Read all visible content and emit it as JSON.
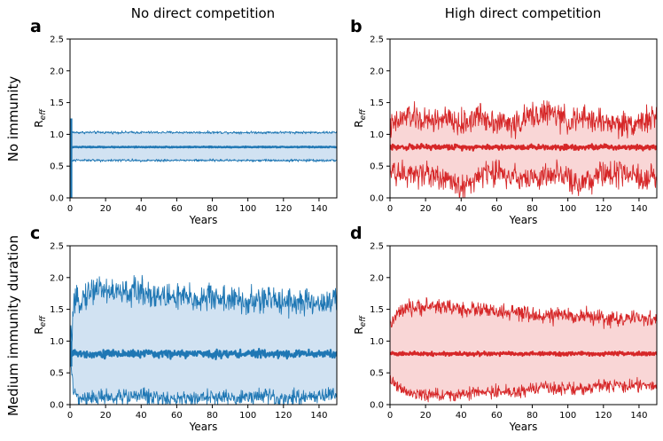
{
  "column_titles": [
    "No direct competition",
    "High direct competition"
  ],
  "row_titles": [
    "No immunity",
    "Medium immunity duration"
  ],
  "chart_data": [
    {
      "panel": "a",
      "type": "line",
      "color": "#1f77b4",
      "fill": "#c6dbef",
      "xlabel": "Years",
      "ylabel_main": "R",
      "ylabel_sub": "eff",
      "xlim": [
        0,
        150
      ],
      "ylim": [
        0,
        2.5
      ],
      "xticks": [
        0,
        20,
        40,
        60,
        80,
        100,
        120,
        140
      ],
      "yticks": [
        0.0,
        0.5,
        1.0,
        1.5,
        2.0,
        2.5
      ],
      "series": [
        {
          "name": "upper",
          "x": [
            0,
            150
          ],
          "y": [
            1.03,
            1.03
          ],
          "noise": 0.01
        },
        {
          "name": "mean",
          "x": [
            0,
            150
          ],
          "y": [
            0.8,
            0.8
          ],
          "noise": 0.004
        },
        {
          "name": "lower",
          "x": [
            0,
            150
          ],
          "y": [
            0.59,
            0.59
          ],
          "noise": 0.01
        }
      ],
      "initial_spike": [
        0.0,
        1.25
      ]
    },
    {
      "panel": "b",
      "type": "line",
      "color": "#d62728",
      "fill": "#f7cccc",
      "xlabel": "Years",
      "ylabel_main": "R",
      "ylabel_sub": "eff",
      "xlim": [
        0,
        150
      ],
      "ylim": [
        0,
        2.5
      ],
      "xticks": [
        0,
        20,
        40,
        60,
        80,
        100,
        120,
        140
      ],
      "yticks": [
        0.0,
        0.5,
        1.0,
        1.5,
        2.0,
        2.5
      ],
      "series": [
        {
          "name": "upper",
          "x": [
            0,
            10,
            20,
            30,
            40,
            50,
            60,
            70,
            80,
            90,
            100,
            110,
            120,
            130,
            140,
            150
          ],
          "y": [
            1.1,
            1.3,
            1.2,
            1.25,
            1.15,
            1.3,
            1.2,
            1.15,
            1.3,
            1.35,
            1.2,
            1.25,
            1.2,
            1.15,
            1.2,
            1.25
          ],
          "noise": 0.1
        },
        {
          "name": "mean",
          "x": [
            0,
            150
          ],
          "y": [
            0.8,
            0.8
          ],
          "noise": 0.02
        },
        {
          "name": "lower",
          "x": [
            0,
            10,
            20,
            30,
            40,
            50,
            60,
            70,
            80,
            90,
            100,
            110,
            120,
            130,
            140,
            150
          ],
          "y": [
            0.45,
            0.35,
            0.4,
            0.3,
            0.15,
            0.35,
            0.4,
            0.35,
            0.3,
            0.35,
            0.3,
            0.2,
            0.4,
            0.35,
            0.3,
            0.3
          ],
          "noise": 0.1
        }
      ],
      "initial_spike": []
    },
    {
      "panel": "c",
      "type": "line",
      "color": "#1f77b4",
      "fill": "#c6dbef",
      "xlabel": "Years",
      "ylabel_main": "R",
      "ylabel_sub": "eff",
      "xlim": [
        0,
        150
      ],
      "ylim": [
        0,
        2.5
      ],
      "xticks": [
        0,
        20,
        40,
        60,
        80,
        100,
        120,
        140
      ],
      "yticks": [
        0.0,
        0.5,
        1.0,
        1.5,
        2.0,
        2.5
      ],
      "series": [
        {
          "name": "upper",
          "x": [
            0,
            2,
            5,
            10,
            15,
            20,
            30,
            40,
            50,
            60,
            70,
            80,
            90,
            100,
            110,
            120,
            130,
            140,
            150
          ],
          "y": [
            0.8,
            1.5,
            1.65,
            1.75,
            1.85,
            1.8,
            1.75,
            1.8,
            1.7,
            1.7,
            1.65,
            1.7,
            1.65,
            1.6,
            1.65,
            1.65,
            1.6,
            1.6,
            1.65
          ],
          "noise": 0.11
        },
        {
          "name": "mean",
          "x": [
            0,
            150
          ],
          "y": [
            0.8,
            0.8
          ],
          "noise": 0.03
        },
        {
          "name": "lower",
          "x": [
            0,
            2,
            5,
            10,
            20,
            30,
            40,
            50,
            60,
            70,
            80,
            90,
            100,
            110,
            120,
            130,
            140,
            150
          ],
          "y": [
            0.8,
            0.2,
            0.1,
            0.1,
            0.12,
            0.12,
            0.15,
            0.1,
            0.1,
            0.1,
            0.12,
            0.1,
            0.12,
            0.12,
            0.1,
            0.12,
            0.15,
            0.15
          ],
          "noise": 0.06
        }
      ],
      "initial_spike": [
        0.6,
        1.0
      ]
    },
    {
      "panel": "d",
      "type": "line",
      "color": "#d62728",
      "fill": "#f7cccc",
      "xlabel": "Years",
      "ylabel_main": "R",
      "ylabel_sub": "eff",
      "xlim": [
        0,
        150
      ],
      "ylim": [
        0,
        2.5
      ],
      "xticks": [
        0,
        20,
        40,
        60,
        80,
        100,
        120,
        140
      ],
      "yticks": [
        0.0,
        0.5,
        1.0,
        1.5,
        2.0,
        2.5
      ],
      "series": [
        {
          "name": "upper",
          "x": [
            0,
            5,
            10,
            20,
            30,
            40,
            50,
            60,
            70,
            80,
            90,
            100,
            110,
            120,
            130,
            140,
            150
          ],
          "y": [
            1.25,
            1.45,
            1.5,
            1.55,
            1.55,
            1.5,
            1.5,
            1.45,
            1.45,
            1.4,
            1.4,
            1.4,
            1.4,
            1.35,
            1.35,
            1.35,
            1.35
          ],
          "noise": 0.06
        },
        {
          "name": "mean",
          "x": [
            0,
            150
          ],
          "y": [
            0.8,
            0.8
          ],
          "noise": 0.015
        },
        {
          "name": "lower",
          "x": [
            0,
            5,
            10,
            20,
            30,
            40,
            50,
            60,
            70,
            80,
            90,
            100,
            110,
            120,
            130,
            140,
            150
          ],
          "y": [
            0.4,
            0.25,
            0.2,
            0.15,
            0.15,
            0.15,
            0.2,
            0.2,
            0.2,
            0.25,
            0.25,
            0.25,
            0.25,
            0.3,
            0.3,
            0.3,
            0.3
          ],
          "noise": 0.05
        }
      ],
      "initial_spike": []
    }
  ]
}
